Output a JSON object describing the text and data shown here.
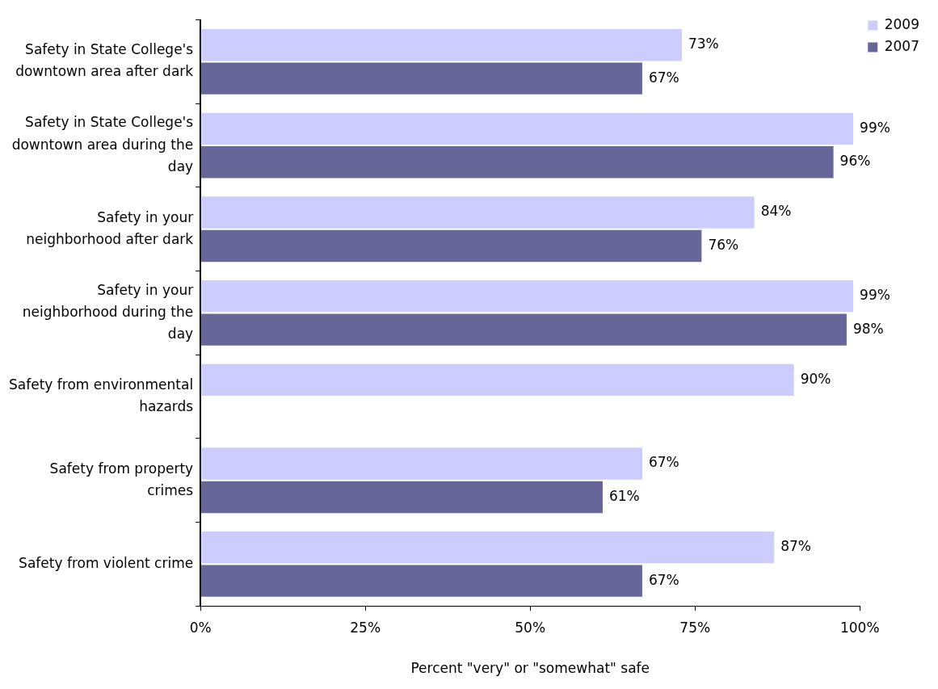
{
  "chart_data": {
    "type": "bar",
    "orientation": "horizontal",
    "categories": [
      "Safety in State College's downtown area after dark",
      "Safety in State College's downtown area during the day",
      "Safety in your neighborhood after dark",
      "Safety in your neighborhood during the day",
      "Safety from environmental hazards",
      "Safety from property crimes",
      "Safety from violent crime"
    ],
    "series": [
      {
        "name": "2009",
        "color": "#ccccff",
        "values": [
          73,
          99,
          84,
          99,
          90,
          67,
          87
        ],
        "value_labels": [
          "73%",
          "99%",
          "84%",
          "99%",
          "90%",
          "67%",
          "87%"
        ]
      },
      {
        "name": "2007",
        "color": "#666699",
        "values": [
          67,
          96,
          76,
          98,
          null,
          61,
          67
        ],
        "value_labels": [
          "67%",
          "96%",
          "76%",
          "98%",
          null,
          "61%",
          "67%"
        ]
      }
    ],
    "xlabel": "Percent \"very\" or \"somewhat\" safe",
    "xlim": [
      0,
      100
    ],
    "xticks": [
      {
        "value": 0,
        "label": "0%"
      },
      {
        "value": 25,
        "label": "25%"
      },
      {
        "value": 50,
        "label": "50%"
      },
      {
        "value": 75,
        "label": "75%"
      },
      {
        "value": 100,
        "label": "100%"
      }
    ],
    "grid": false,
    "legend": "right"
  }
}
